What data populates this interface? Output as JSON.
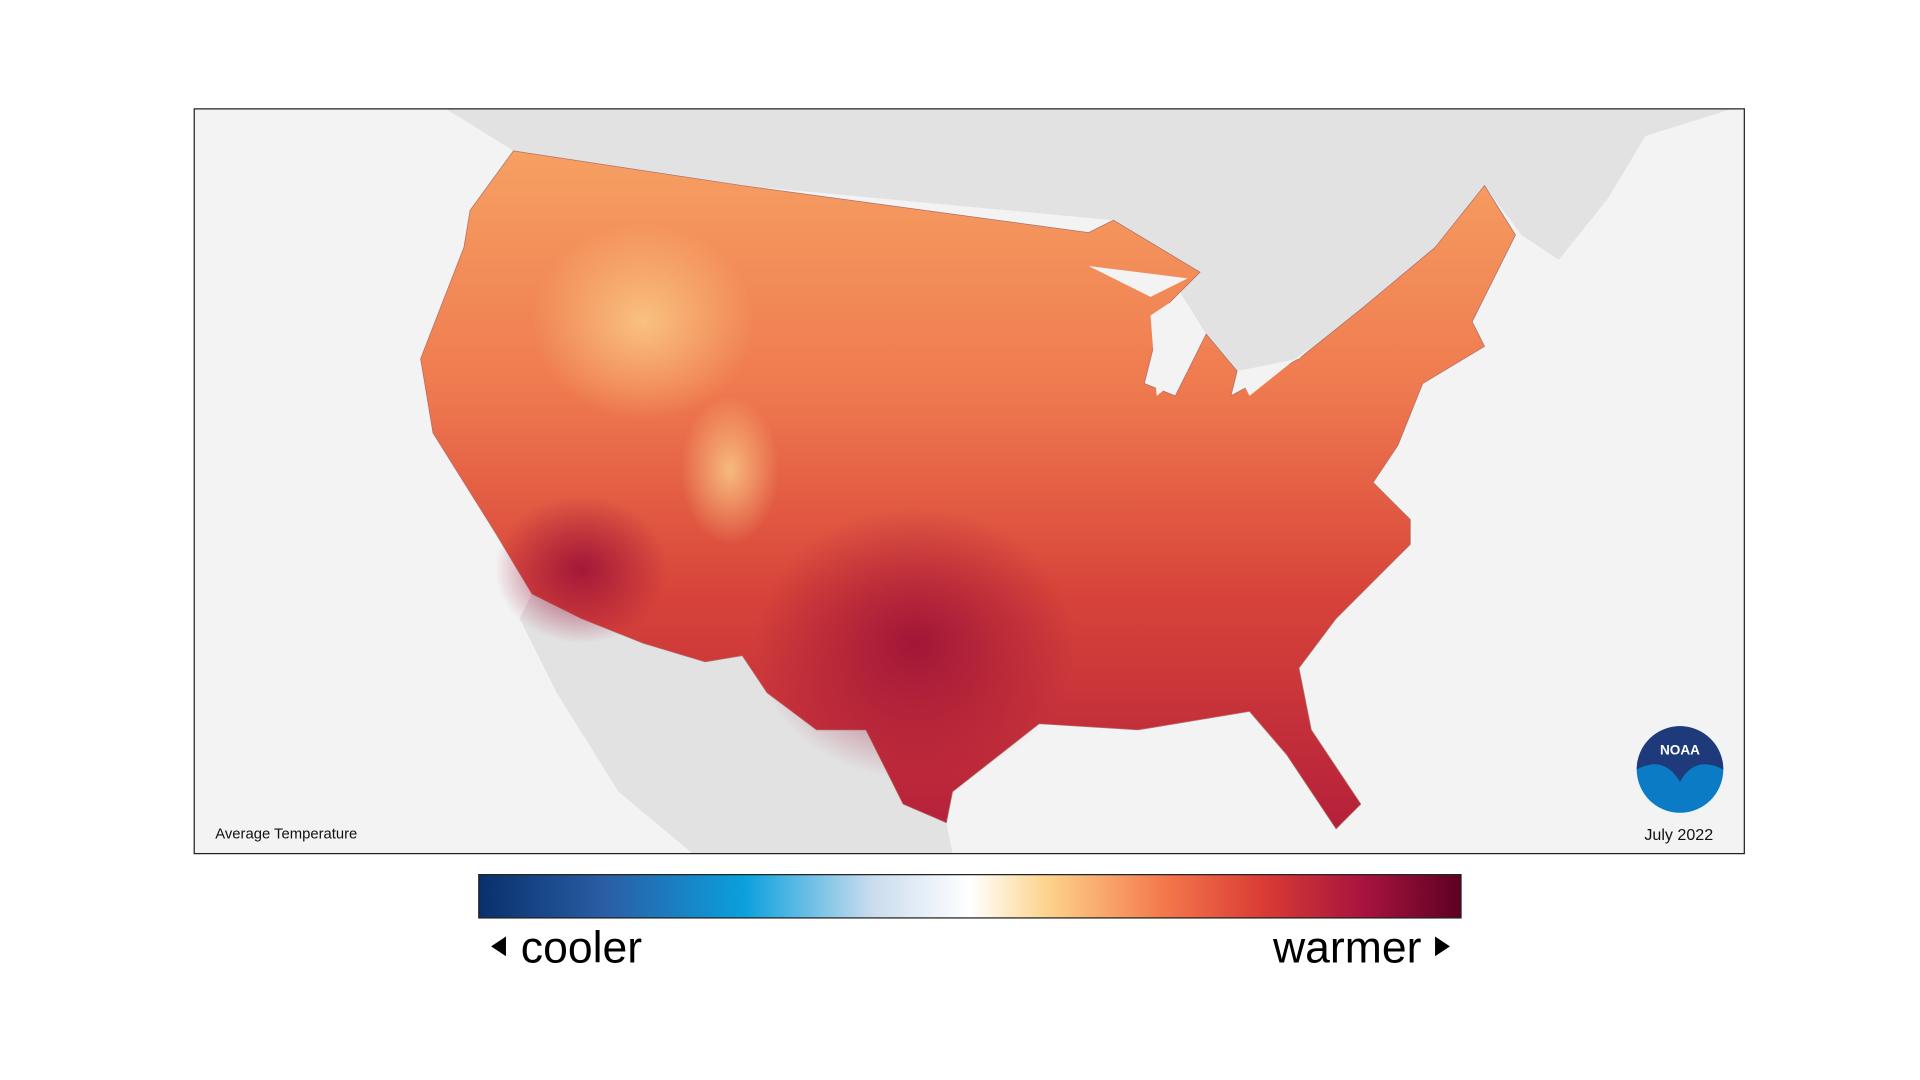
{
  "map": {
    "title": "Average Temperature",
    "date": "July 2022",
    "logo": "NOAA"
  },
  "legend": {
    "low": "cooler",
    "high": "warmer"
  }
}
